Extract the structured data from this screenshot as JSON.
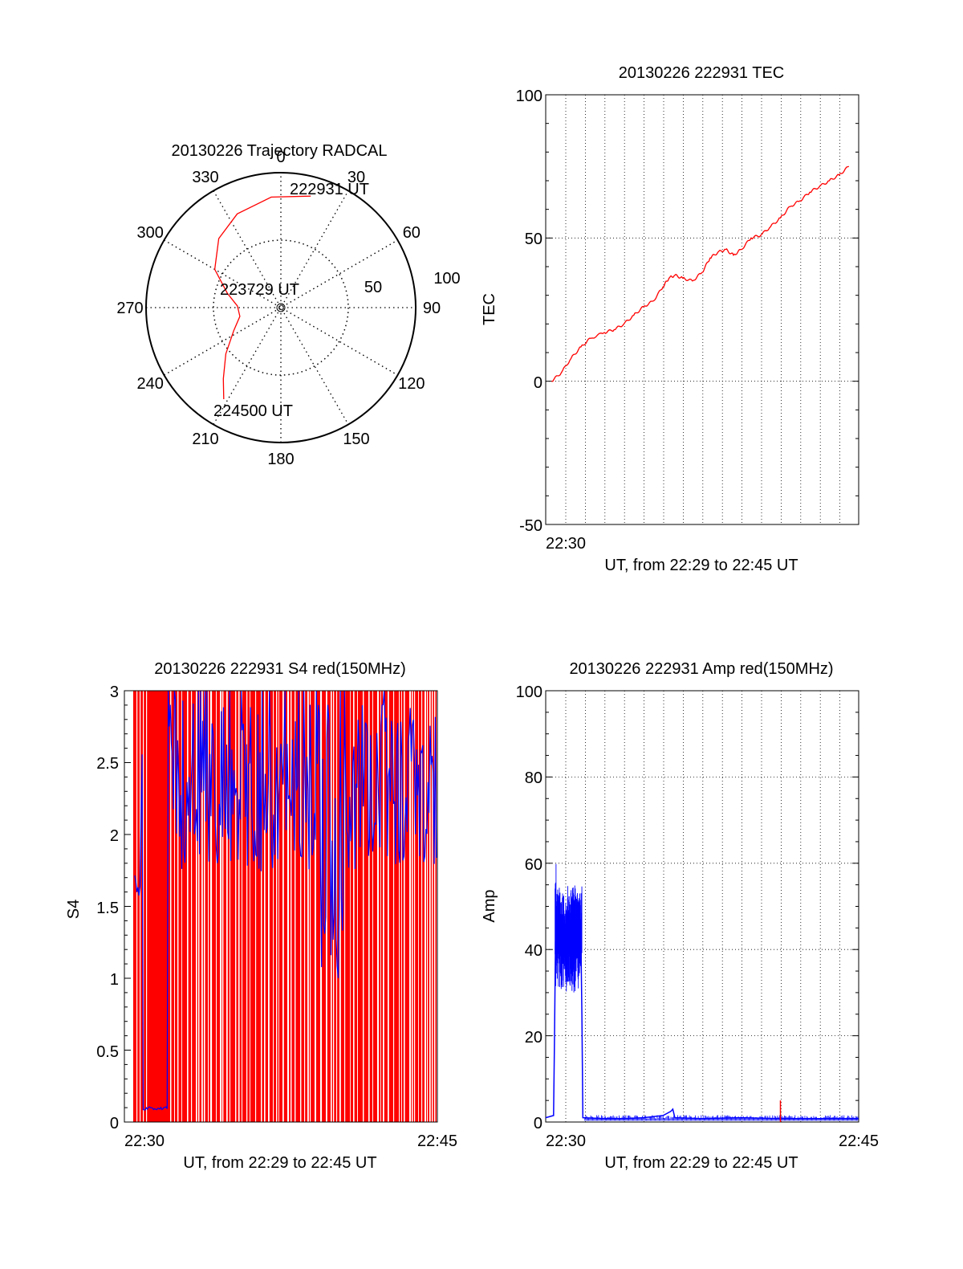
{
  "colors": {
    "red": "#ff0000",
    "blue": "#0000ff",
    "axis": "#000000"
  },
  "chart_data": [
    {
      "type": "polar",
      "title": "20130226 Trajectory RADCAL",
      "angle_labels": [
        "0",
        "30",
        "60",
        "90",
        "120",
        "150",
        "180",
        "210",
        "240",
        "270",
        "300",
        "330"
      ],
      "radius_labels": [
        "50",
        "100"
      ],
      "rlim": [
        0,
        100
      ],
      "track_labels": [
        "222931 UT",
        "223729 UT",
        "224500 UT"
      ],
      "trajectory": {
        "azimuth_deg": [
          15,
          355,
          335,
          318,
          300,
          285,
          272,
          258,
          244,
          230,
          219,
          212
        ],
        "elevation_deg": [
          13,
          16,
          21,
          28,
          39,
          53,
          61,
          62,
          55,
          42,
          29,
          18
        ]
      }
    },
    {
      "type": "line",
      "title": "20130226 222931 TEC",
      "xlabel": "UT, from 22:29 to 22:45 UT",
      "ylabel": "TEC",
      "xlim": [
        0,
        16
      ],
      "ylim": [
        -50,
        100
      ],
      "yticks": [
        "100",
        "50",
        "0",
        "-50"
      ],
      "xtick_labels": [
        "22:30"
      ],
      "grid": true,
      "series": [
        {
          "color": "red",
          "x": [
            0.3,
            0.8,
            1.3,
            1.8,
            2.3,
            3.0,
            3.5,
            4.0,
            4.5,
            5.0,
            5.5,
            6.0,
            6.3,
            6.6,
            7.0,
            7.5,
            8.0,
            8.4,
            8.8,
            9.2,
            9.6,
            10.0,
            10.5,
            11.0,
            11.5,
            12.0,
            12.5,
            13.0,
            13.5,
            14.0,
            14.5,
            15.0,
            15.5
          ],
          "y": [
            0,
            3,
            8,
            12,
            15,
            17,
            18,
            20,
            23,
            26,
            28,
            33,
            36,
            37,
            36,
            35,
            38,
            43,
            45,
            46,
            44,
            46,
            50,
            51,
            54,
            57,
            61,
            63,
            66,
            68,
            70,
            72,
            75
          ]
        }
      ]
    },
    {
      "type": "line",
      "title": "20130226 222931 S4 red(150MHz)",
      "xlabel": "UT, from 22:29 to 22:45 UT",
      "ylabel": "S4",
      "xlim": [
        0,
        16
      ],
      "ylim": [
        0,
        3
      ],
      "yticks": [
        "3",
        "2.5",
        "2",
        "1.5",
        "1",
        "0.5",
        "0"
      ],
      "xtick_labels": [
        "22:30",
        "22:45"
      ],
      "series": [
        {
          "color": "red",
          "note": "dense vertical spikes spanning 0 to 3"
        },
        {
          "color": "blue",
          "note": "dense high-variability trace"
        }
      ]
    },
    {
      "type": "line",
      "title": "20130226 222931 Amp red(150MHz)",
      "xlabel": "UT, from 22:29 to 22:45 UT",
      "ylabel": "Amp",
      "xlim": [
        0,
        16
      ],
      "ylim": [
        0,
        100
      ],
      "yticks": [
        "100",
        "80",
        "60",
        "40",
        "20",
        "0"
      ],
      "xtick_labels": [
        "22:30",
        "22:45"
      ],
      "grid": true,
      "series": [
        {
          "color": "blue",
          "x": [
            0.0,
            0.4,
            0.45,
            0.5,
            0.7,
            1.0,
            1.4,
            1.8,
            1.85,
            1.9,
            3.0,
            4.0,
            5.0,
            6.0,
            6.4,
            6.5,
            6.6,
            8.0,
            10.0,
            12.0,
            14.0,
            16.0
          ],
          "y": [
            1,
            1.5,
            20,
            42,
            45,
            44,
            43,
            42,
            25,
            1,
            0.8,
            0.8,
            1,
            1.5,
            2.5,
            3,
            1,
            0.8,
            1,
            0.8,
            0.8,
            0.8
          ]
        },
        {
          "color": "red",
          "x": [
            12.0
          ],
          "y": [
            5
          ]
        }
      ]
    }
  ]
}
